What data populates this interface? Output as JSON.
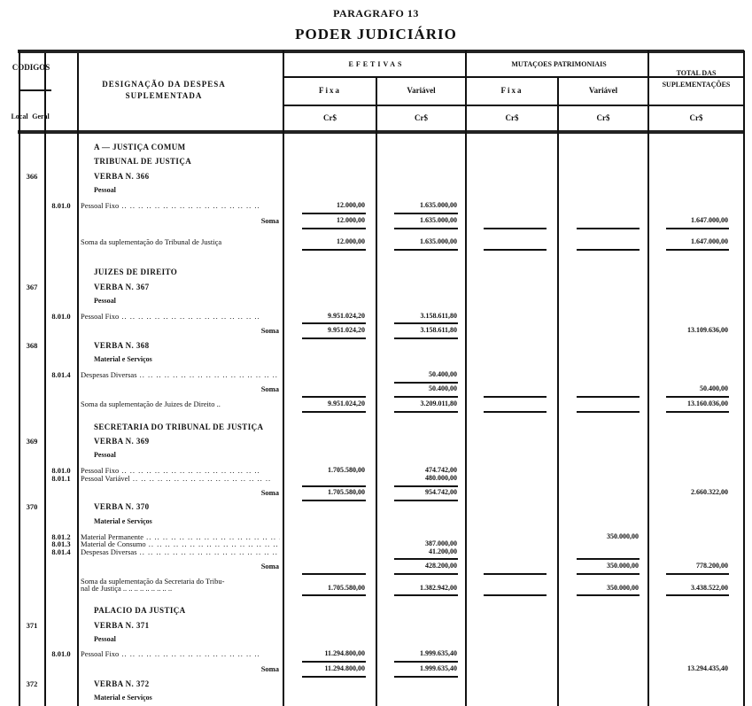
{
  "header": {
    "paragraph": "PARAGRAFO 13",
    "title": "PODER JUDICIÁRIO",
    "codigos": "CODIGOS",
    "local": "Local",
    "geral": "Geral",
    "designacao": "DESIGNAÇÃO DA DESPESA SUPLEMENTADA",
    "efetivas": "EFETIVAS",
    "mutacoes": "MUTAÇOES PATRIMONIAIS",
    "total": "TOTAL DAS SUPLEMENTAÇÕES",
    "fixa": "Fixa",
    "variavel": "Variável",
    "currency": "Cr$"
  },
  "rows": [
    {
      "type": "section",
      "desc": "A — JUSTIÇA COMUM"
    },
    {
      "type": "section",
      "desc": "TRIBUNAL DE JUSTIÇA"
    },
    {
      "type": "verba",
      "local": "366",
      "desc": "VERBA N. 366"
    },
    {
      "type": "group",
      "desc": "Pessoal"
    },
    {
      "type": "item",
      "geral": "8.01.0",
      "desc": "Pessoal Fixo",
      "ef": "12.000,00",
      "ev": "1.635.000,00"
    },
    {
      "type": "soma",
      "desc": "Soma",
      "ef": "12.000,00",
      "ev": "1.635.000,00",
      "tot": "1.647.000,00"
    },
    {
      "type": "total",
      "desc": "Soma da suplementação do Tribunal de Justiça",
      "ef": "12.000,00",
      "ev": "1.635.000,00",
      "tot": "1.647.000,00"
    },
    {
      "type": "section",
      "desc": "JUIZES DE DIREITO"
    },
    {
      "type": "verba",
      "local": "367",
      "desc": "VERBA N. 367"
    },
    {
      "type": "group",
      "desc": "Pessoal"
    },
    {
      "type": "item",
      "geral": "8.01.0",
      "desc": "Pessoal Fixo",
      "ef": "9.951.024,20",
      "ev": "3.158.611,80"
    },
    {
      "type": "soma",
      "desc": "Soma",
      "ef": "9.951.024,20",
      "ev": "3.158.611,80",
      "tot": "13.109.636,00"
    },
    {
      "type": "verba",
      "local": "368",
      "desc": "VERBA N. 368"
    },
    {
      "type": "group",
      "desc": "Material e Serviços"
    },
    {
      "type": "item",
      "geral": "8.01.4",
      "desc": "Despesas Diversas",
      "ev": "50.400,00"
    },
    {
      "type": "soma",
      "desc": "Soma",
      "ev": "50.400,00",
      "tot": "50.400,00"
    },
    {
      "type": "total",
      "desc": "Soma da suplementação de Juizes de Direito ..",
      "ef": "9.951.024,20",
      "ev": "3.209.011,80",
      "tot": "13.160.036,00"
    },
    {
      "type": "section",
      "desc": "SECRETARIA DO TRIBUNAL DE JUSTIÇA"
    },
    {
      "type": "verba",
      "local": "369",
      "desc": "VERBA N. 369"
    },
    {
      "type": "group",
      "desc": "Pessoal"
    },
    {
      "type": "item",
      "geral": "8.01.0",
      "desc": "Pessoal Fixo",
      "ef": "1.705.580,00",
      "ev": "474.742,00"
    },
    {
      "type": "item",
      "geral": "8.01.1",
      "desc": "Pessoal Variável",
      "ev": "480.000,00"
    },
    {
      "type": "soma",
      "desc": "Soma",
      "ef": "1.705.580,00",
      "ev": "954.742,00",
      "tot": "2.660.322,00"
    },
    {
      "type": "verba",
      "local": "370",
      "desc": "VERBA N. 370"
    },
    {
      "type": "group",
      "desc": "Material e Serviços"
    },
    {
      "type": "item",
      "geral": "8.01.2",
      "desc": "Material Permanente",
      "mv": "350.000,00"
    },
    {
      "type": "item",
      "geral": "8.01.3",
      "desc": "Material de Consumo",
      "ev": "387.000,00"
    },
    {
      "type": "item",
      "geral": "8.01.4",
      "desc": "Despesas Diversas",
      "ev": "41.200,00"
    },
    {
      "type": "soma",
      "desc": "Soma",
      "ev": "428.200,00",
      "mv": "350.000,00",
      "tot": "778.200,00"
    },
    {
      "type": "total",
      "desc": "Soma da suplementação da Secretaria do Tribu-"
    },
    {
      "type": "total2",
      "desc": "nal de Justiça .. .. .. .. .. .. .. .. ..",
      "ef": "1.705.580,00",
      "ev": "1.382.942,00",
      "mv": "350.000,00",
      "tot": "3.438.522,00"
    },
    {
      "type": "section",
      "desc": "PALACIO DA JUSTIÇA"
    },
    {
      "type": "verba",
      "local": "371",
      "desc": "VERBA N. 371"
    },
    {
      "type": "group",
      "desc": "Pessoal"
    },
    {
      "type": "item",
      "geral": "8.01.0",
      "desc": "Pessoal Fixo",
      "ef": "11.294.800,00",
      "ev": "1.999.635,40"
    },
    {
      "type": "soma",
      "desc": "Soma",
      "ef": "11.294.800,00",
      "ev": "1.999.635,40",
      "tot": "13.294.435,40"
    },
    {
      "type": "verba",
      "local": "372",
      "desc": "VERBA N. 372"
    },
    {
      "type": "group",
      "desc": "Material e Serviços"
    }
  ]
}
